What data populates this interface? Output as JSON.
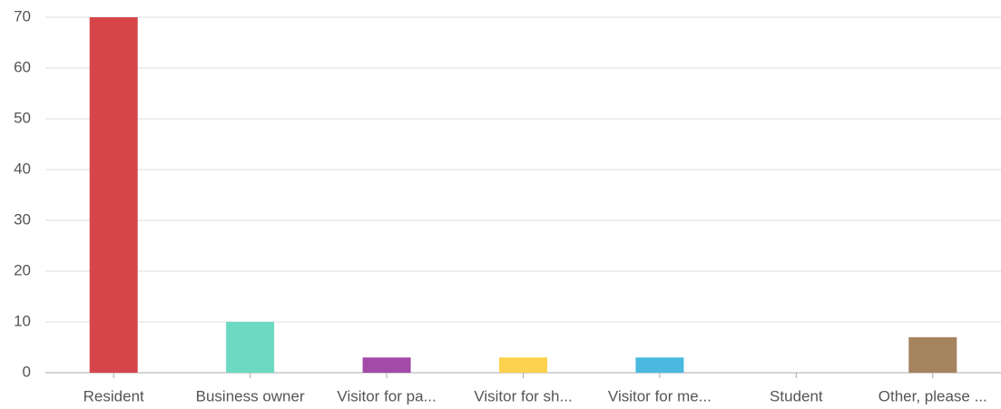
{
  "chart_data": {
    "type": "bar",
    "categories": [
      "Resident",
      "Business owner",
      "Visitor for pa...",
      "Visitor for sh...",
      "Visitor for me...",
      "Student",
      "Other, please ..."
    ],
    "values": [
      70,
      10,
      3,
      3,
      3,
      0,
      7
    ],
    "colors": [
      "#d6454a",
      "#6cd9c2",
      "#a24aa8",
      "#fdd24c",
      "#4bb9df",
      "#e08db8",
      "#a5835f"
    ],
    "ylim": [
      0,
      70
    ],
    "yticks": [
      0,
      10,
      20,
      30,
      40,
      50,
      60,
      70
    ],
    "grid": true
  }
}
